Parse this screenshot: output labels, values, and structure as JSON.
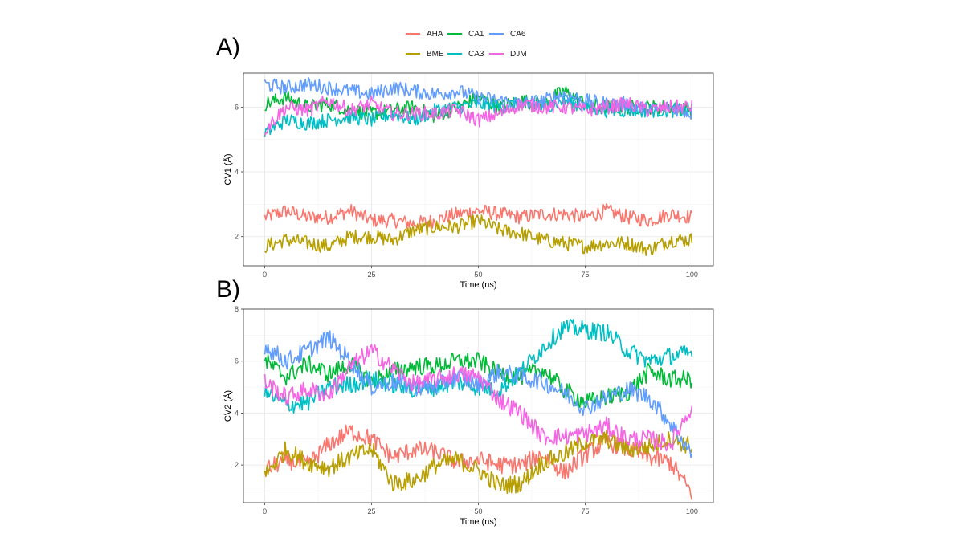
{
  "panels": {
    "a_label": "A)",
    "b_label": "B)"
  },
  "legend": {
    "items": [
      {
        "name": "AHA",
        "color": "#F8766D"
      },
      {
        "name": "CA1",
        "color": "#00BA38"
      },
      {
        "name": "CA6",
        "color": "#619CFF"
      },
      {
        "name": "BME",
        "color": "#B79F00"
      },
      {
        "name": "CA3",
        "color": "#00BFC4"
      },
      {
        "name": "DJM",
        "color": "#F564E3"
      }
    ]
  },
  "chart_data": [
    {
      "type": "line",
      "xlabel": "Time (ns)",
      "ylabel": "CV1 (Å)",
      "xlim": [
        -5,
        105
      ],
      "ylim": [
        1.1,
        7.05
      ],
      "xticks": [
        0,
        25,
        50,
        75,
        100
      ],
      "yticks": [
        2,
        4,
        6
      ],
      "grid": true,
      "legend_position": "top",
      "series": [
        {
          "name": "AHA",
          "color": "#F8766D",
          "x": [
            0,
            5,
            10,
            15,
            20,
            25,
            30,
            35,
            40,
            45,
            50,
            55,
            60,
            65,
            70,
            75,
            80,
            85,
            90,
            95,
            100
          ],
          "y": [
            2.6,
            2.8,
            2.6,
            2.6,
            2.8,
            2.5,
            2.5,
            2.4,
            2.5,
            2.7,
            2.8,
            2.7,
            2.6,
            2.7,
            2.7,
            2.6,
            2.8,
            2.6,
            2.5,
            2.7,
            2.6
          ]
        },
        {
          "name": "BME",
          "color": "#B79F00",
          "x": [
            0,
            5,
            10,
            15,
            20,
            25,
            30,
            35,
            40,
            45,
            50,
            55,
            60,
            65,
            70,
            75,
            80,
            85,
            90,
            95,
            100
          ],
          "y": [
            1.7,
            1.9,
            1.8,
            1.7,
            2.0,
            2.0,
            1.9,
            2.2,
            2.3,
            2.3,
            2.5,
            2.2,
            2.1,
            1.9,
            1.8,
            1.7,
            1.8,
            1.8,
            1.6,
            1.9,
            1.9
          ]
        },
        {
          "name": "CA1",
          "color": "#00BA38",
          "x": [
            0,
            5,
            10,
            15,
            20,
            25,
            30,
            35,
            40,
            45,
            50,
            55,
            60,
            65,
            70,
            75,
            80,
            85,
            90,
            95,
            100
          ],
          "y": [
            6.1,
            6.3,
            6.0,
            6.1,
            5.9,
            5.8,
            5.9,
            6.0,
            5.7,
            6.0,
            6.3,
            6.0,
            6.2,
            6.1,
            6.5,
            6.1,
            6.0,
            6.0,
            6.0,
            6.0,
            5.9
          ]
        },
        {
          "name": "CA3",
          "color": "#00BFC4",
          "x": [
            0,
            5,
            10,
            15,
            20,
            25,
            30,
            35,
            40,
            45,
            50,
            55,
            60,
            65,
            70,
            75,
            80,
            85,
            90,
            95,
            100
          ],
          "y": [
            5.2,
            5.6,
            5.5,
            5.6,
            5.7,
            5.6,
            5.8,
            5.6,
            5.9,
            6.0,
            6.1,
            6.0,
            6.1,
            6.0,
            6.2,
            6.0,
            5.9,
            5.9,
            5.9,
            5.9,
            5.9
          ]
        },
        {
          "name": "CA6",
          "color": "#619CFF",
          "x": [
            0,
            5,
            10,
            15,
            20,
            25,
            30,
            35,
            40,
            45,
            50,
            55,
            60,
            65,
            70,
            75,
            80,
            85,
            90,
            95,
            100
          ],
          "y": [
            6.7,
            6.6,
            6.7,
            6.6,
            6.5,
            6.4,
            6.6,
            6.5,
            6.4,
            6.5,
            6.3,
            6.2,
            6.1,
            6.2,
            6.4,
            6.2,
            6.1,
            6.1,
            5.9,
            6.0,
            5.8
          ]
        },
        {
          "name": "DJM",
          "color": "#F564E3",
          "x": [
            0,
            5,
            10,
            15,
            20,
            25,
            30,
            35,
            40,
            45,
            50,
            55,
            60,
            65,
            70,
            75,
            80,
            85,
            90,
            95,
            100
          ],
          "y": [
            5.3,
            6.0,
            5.9,
            6.2,
            5.9,
            6.1,
            5.8,
            5.8,
            5.8,
            5.9,
            5.6,
            5.8,
            6.1,
            6.0,
            6.0,
            5.9,
            6.0,
            6.1,
            5.9,
            6.0,
            6.0
          ]
        }
      ]
    },
    {
      "type": "line",
      "xlabel": "Time (ns)",
      "ylabel": "CV2 (Å)",
      "xlim": [
        -5,
        105
      ],
      "ylim": [
        0.55,
        8.0
      ],
      "xticks": [
        0,
        25,
        50,
        75,
        100
      ],
      "yticks": [
        2,
        4,
        6,
        8
      ],
      "grid": true,
      "series": [
        {
          "name": "AHA",
          "color": "#F8766D",
          "x": [
            0,
            5,
            10,
            15,
            20,
            25,
            30,
            35,
            40,
            45,
            50,
            55,
            60,
            65,
            70,
            75,
            80,
            85,
            90,
            95,
            100
          ],
          "y": [
            1.8,
            2.2,
            2.0,
            2.8,
            3.3,
            3.0,
            2.3,
            2.6,
            2.5,
            2.1,
            2.2,
            2.0,
            2.0,
            2.4,
            1.7,
            2.4,
            2.9,
            2.6,
            2.3,
            2.1,
            0.9
          ]
        },
        {
          "name": "BME",
          "color": "#B79F00",
          "x": [
            0,
            5,
            10,
            15,
            20,
            25,
            30,
            35,
            40,
            45,
            50,
            55,
            60,
            65,
            70,
            75,
            80,
            85,
            90,
            95,
            100
          ],
          "y": [
            1.6,
            2.6,
            2.1,
            1.9,
            2.3,
            2.6,
            1.3,
            1.4,
            2.0,
            2.2,
            1.8,
            1.2,
            1.3,
            2.1,
            2.4,
            2.9,
            3.0,
            2.6,
            2.7,
            3.0,
            2.7
          ]
        },
        {
          "name": "CA1",
          "color": "#00BA38",
          "x": [
            0,
            5,
            10,
            15,
            20,
            25,
            30,
            35,
            40,
            45,
            50,
            55,
            60,
            65,
            70,
            75,
            80,
            85,
            90,
            95,
            100
          ],
          "y": [
            6.0,
            5.4,
            5.9,
            5.5,
            5.9,
            5.2,
            5.6,
            5.8,
            5.8,
            6.0,
            6.0,
            5.5,
            5.4,
            5.7,
            4.9,
            4.4,
            4.6,
            4.8,
            5.6,
            5.3,
            5.3
          ]
        },
        {
          "name": "CA3",
          "color": "#00BFC4",
          "x": [
            0,
            5,
            10,
            15,
            20,
            25,
            30,
            35,
            40,
            45,
            50,
            55,
            60,
            65,
            70,
            75,
            80,
            85,
            90,
            95,
            100
          ],
          "y": [
            4.8,
            4.3,
            4.4,
            5.0,
            5.1,
            5.3,
            5.1,
            4.9,
            5.0,
            5.2,
            5.0,
            4.9,
            5.6,
            6.5,
            7.3,
            7.2,
            7.1,
            6.4,
            6.0,
            6.2,
            6.3
          ]
        },
        {
          "name": "CA6",
          "color": "#619CFF",
          "x": [
            0,
            5,
            10,
            15,
            20,
            25,
            30,
            35,
            40,
            45,
            50,
            55,
            60,
            65,
            70,
            75,
            80,
            85,
            90,
            95,
            100
          ],
          "y": [
            6.6,
            6.0,
            6.4,
            6.9,
            6.0,
            5.0,
            5.2,
            5.0,
            5.0,
            5.4,
            5.1,
            5.6,
            5.4,
            5.2,
            4.8,
            4.2,
            4.6,
            4.9,
            4.6,
            3.6,
            2.4
          ]
        },
        {
          "name": "DJM",
          "color": "#F564E3",
          "x": [
            0,
            5,
            10,
            15,
            20,
            25,
            30,
            35,
            40,
            45,
            50,
            55,
            60,
            65,
            70,
            75,
            80,
            85,
            90,
            95,
            100
          ],
          "y": [
            5.2,
            4.6,
            4.9,
            4.7,
            5.8,
            6.4,
            5.7,
            5.1,
            5.3,
            5.5,
            5.4,
            4.5,
            4.0,
            3.1,
            3.1,
            3.2,
            3.5,
            3.0,
            3.0,
            2.8,
            4.3
          ]
        }
      ]
    }
  ]
}
